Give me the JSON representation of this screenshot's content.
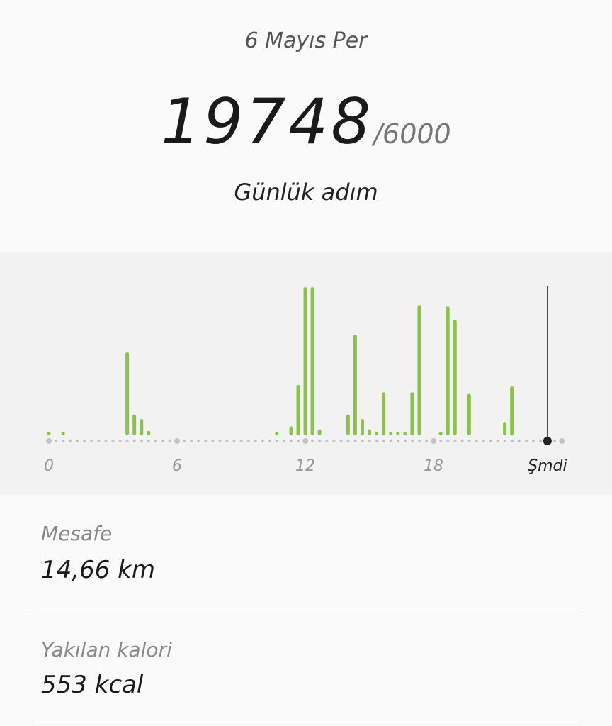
{
  "header": {
    "date": "6 Mayıs Per",
    "steps": "19748",
    "goal": "/6000",
    "label": "Günlük adım"
  },
  "chart_data": {
    "type": "bar",
    "bin_minutes": 20,
    "x_ticks": [
      "0",
      "6",
      "12",
      "18"
    ],
    "now_label": "Şmdi",
    "now_hour": 23.33,
    "xlim": [
      0,
      24
    ],
    "value_unit": "relative (percent of tallest bar)",
    "bar_color": "#8bc34a",
    "bars": [
      {
        "time": "00:00",
        "value": 1.5
      },
      {
        "time": "00:40",
        "value": 1.5
      },
      {
        "time": "03:40",
        "value": 56
      },
      {
        "time": "04:00",
        "value": 14
      },
      {
        "time": "04:20",
        "value": 11
      },
      {
        "time": "04:40",
        "value": 3
      },
      {
        "time": "10:40",
        "value": 1.5
      },
      {
        "time": "11:20",
        "value": 6
      },
      {
        "time": "11:40",
        "value": 34
      },
      {
        "time": "12:00",
        "value": 100
      },
      {
        "time": "12:20",
        "value": 100
      },
      {
        "time": "12:40",
        "value": 4
      },
      {
        "time": "14:00",
        "value": 14
      },
      {
        "time": "14:20",
        "value": 68
      },
      {
        "time": "14:40",
        "value": 11
      },
      {
        "time": "15:00",
        "value": 4
      },
      {
        "time": "15:20",
        "value": 1.5
      },
      {
        "time": "15:40",
        "value": 29
      },
      {
        "time": "16:00",
        "value": 1.5
      },
      {
        "time": "16:20",
        "value": 1.5
      },
      {
        "time": "16:40",
        "value": 1.5
      },
      {
        "time": "17:00",
        "value": 29
      },
      {
        "time": "17:20",
        "value": 88
      },
      {
        "time": "18:20",
        "value": 1.5
      },
      {
        "time": "18:40",
        "value": 87
      },
      {
        "time": "19:00",
        "value": 78
      },
      {
        "time": "19:40",
        "value": 28
      },
      {
        "time": "21:20",
        "value": 9
      },
      {
        "time": "21:40",
        "value": 33
      }
    ]
  },
  "stats": [
    {
      "label": "Mesafe",
      "value": "14,66 km"
    },
    {
      "label": "Yakılan kalori",
      "value": "553 kcal"
    }
  ]
}
